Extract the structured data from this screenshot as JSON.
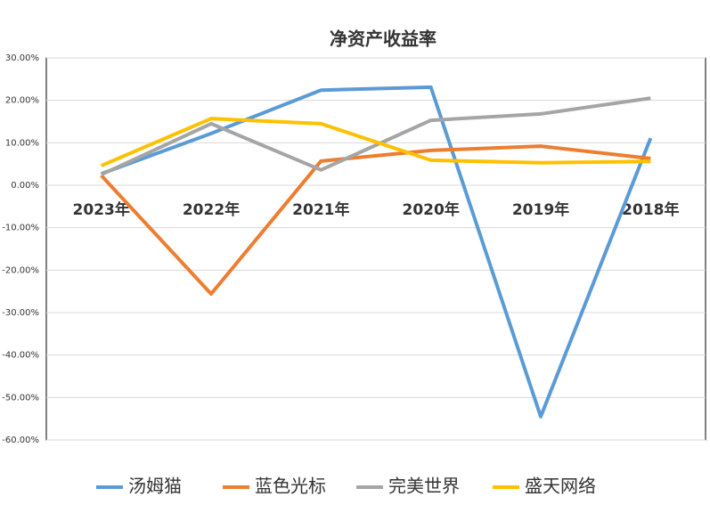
{
  "chart_data": {
    "type": "line",
    "title": "净资产收益率",
    "categories": [
      "2023年",
      "2022年",
      "2021年",
      "2020年",
      "2019年",
      "2018年"
    ],
    "series": [
      {
        "name": "汤姆猫",
        "color": "#5b9bd5",
        "values": [
          2.7,
          12.2,
          22.4,
          23.1,
          -54.5,
          11.1
        ]
      },
      {
        "name": "蓝色光标",
        "color": "#ed7d31",
        "values": [
          2.3,
          -25.6,
          5.7,
          8.2,
          9.2,
          6.3
        ]
      },
      {
        "name": "完美世界",
        "color": "#a5a5a5",
        "values": [
          2.5,
          14.5,
          3.6,
          15.3,
          16.8,
          20.5
        ]
      },
      {
        "name": "盛天网络",
        "color": "#ffc000",
        "values": [
          4.6,
          15.7,
          14.5,
          5.9,
          5.3,
          5.6
        ]
      }
    ],
    "ylim": [
      -60,
      30
    ],
    "yticks": [
      {
        "value": 30,
        "label": "30.00%"
      },
      {
        "value": 20,
        "label": "20.00%"
      },
      {
        "value": 10,
        "label": "10.00%"
      },
      {
        "value": 0,
        "label": "0.00%"
      },
      {
        "value": -10,
        "label": "-10.00%"
      },
      {
        "value": -20,
        "label": "-20.00%"
      },
      {
        "value": -30,
        "label": "-30.00%"
      },
      {
        "value": -40,
        "label": "-40.00%"
      },
      {
        "value": -50,
        "label": "-50.00%"
      },
      {
        "value": -60,
        "label": "-60.00%"
      }
    ],
    "grid": true
  }
}
